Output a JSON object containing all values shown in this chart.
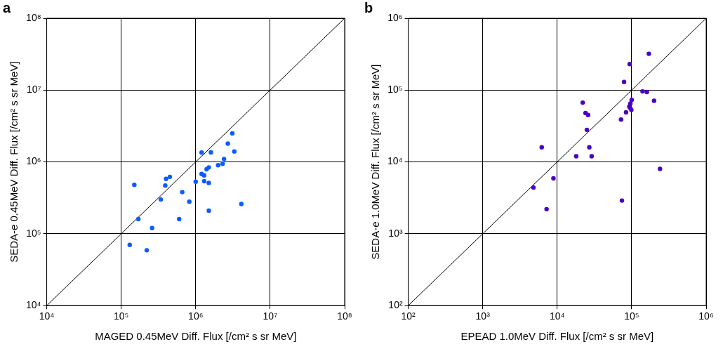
{
  "chart_data": [
    {
      "type": "scatter",
      "title": "a",
      "xlabel": "MAGED 0.45MeV Diff. Flux [/cm² s sr MeV]",
      "ylabel": "SEDA-e 0.45MeV Diff. Flux [/cm² s sr MeV]",
      "log": "xy",
      "grid": true,
      "legend": false,
      "marker": "circle",
      "xlim": [
        10000,
        100000000
      ],
      "ylim": [
        10000,
        100000000
      ],
      "xticks": [
        {
          "value": 10000,
          "label": "10⁴"
        },
        {
          "value": 100000,
          "label": "10⁵"
        },
        {
          "value": 1000000,
          "label": "10⁶"
        },
        {
          "value": 10000000,
          "label": "10⁷"
        },
        {
          "value": 100000000,
          "label": "10⁸"
        }
      ],
      "yticks": [
        {
          "value": 10000,
          "label": "10⁴"
        },
        {
          "value": 100000,
          "label": "10⁵"
        },
        {
          "value": 1000000,
          "label": "10⁶"
        },
        {
          "value": 10000000,
          "label": "10⁷"
        },
        {
          "value": 100000000,
          "label": "10⁸"
        }
      ],
      "series": [
        {
          "type": "line",
          "marker": "none",
          "color": "#000000",
          "x": [
            10000,
            100000000
          ],
          "values": [
            10000,
            100000000
          ]
        },
        {
          "color": "#0a5cff",
          "x": [
            3100000,
            2700000,
            3300000,
            1200000,
            1600000,
            2400000,
            2000000,
            2300000,
            1500000,
            1400000,
            1200000,
            1300000,
            450000,
            400000,
            150000,
            390000,
            1000000,
            1300000,
            1500000,
            660000,
            340000,
            820000,
            4100000,
            1500000,
            170000,
            600000,
            260000,
            130000,
            220000
          ],
          "values": [
            2500000,
            1800000,
            1400000,
            1350000,
            1360000,
            1100000,
            900000,
            940000,
            840000,
            790000,
            680000,
            650000,
            620000,
            580000,
            480000,
            470000,
            530000,
            540000,
            510000,
            380000,
            300000,
            280000,
            260000,
            210000,
            160000,
            160000,
            120000,
            70000,
            59000
          ]
        }
      ]
    },
    {
      "type": "scatter",
      "title": "b",
      "xlabel": "EPEAD 1.0MeV Diff. Flux [/cm² s sr MeV]",
      "ylabel": "SEDA-e 1.0MeV Diff. Flux [/cm² s sr MeV]",
      "log": "xy",
      "grid": true,
      "legend": false,
      "marker": "circle",
      "xlim": [
        100,
        1000000
      ],
      "ylim": [
        100,
        1000000
      ],
      "xticks": [
        {
          "value": 100,
          "label": "10²"
        },
        {
          "value": 1000,
          "label": "10³"
        },
        {
          "value": 10000,
          "label": "10⁴"
        },
        {
          "value": 100000,
          "label": "10⁵"
        },
        {
          "value": 1000000,
          "label": "10⁶"
        }
      ],
      "yticks": [
        {
          "value": 100,
          "label": "10²"
        },
        {
          "value": 1000,
          "label": "10³"
        },
        {
          "value": 10000,
          "label": "10⁴"
        },
        {
          "value": 100000,
          "label": "10⁵"
        },
        {
          "value": 1000000,
          "label": "10⁶"
        }
      ],
      "series": [
        {
          "type": "line",
          "marker": "none",
          "color": "#000000",
          "x": [
            100,
            1000000
          ],
          "values": [
            100,
            1000000
          ]
        },
        {
          "color": "#4a00c8",
          "x": [
            170000,
            94000,
            79000,
            140000,
            160000,
            100000,
            200000,
            22000,
            96000,
            93000,
            95000,
            99000,
            24000,
            26000,
            84000,
            72000,
            25000,
            6200,
            27000,
            18000,
            29000,
            240000,
            8900,
            4800,
            74000,
            7200
          ],
          "values": [
            320000,
            230000,
            130000,
            96000,
            94000,
            73000,
            71000,
            67000,
            65000,
            59000,
            57000,
            53000,
            48000,
            45000,
            49000,
            39000,
            28000,
            16000,
            16000,
            12000,
            12000,
            8000,
            5900,
            4400,
            2900,
            2200
          ]
        }
      ]
    }
  ]
}
